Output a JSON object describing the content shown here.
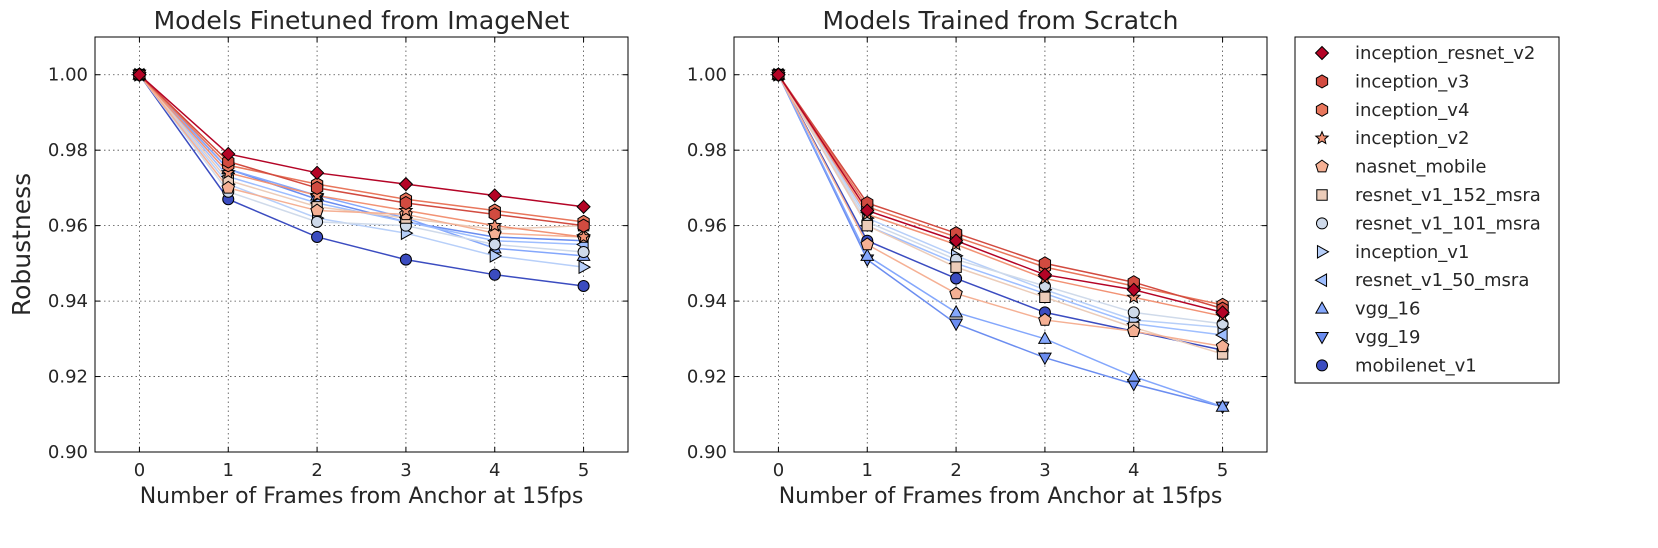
{
  "chart_data": [
    {
      "type": "line",
      "title": "Models Finetuned from ImageNet",
      "xlabel": "Number of Frames from Anchor at 15fps",
      "ylabel": "Robustness",
      "x": [
        0,
        1,
        2,
        3,
        4,
        5
      ],
      "xlim": [
        -0.5,
        5.5
      ],
      "ylim": [
        0.9,
        1.01
      ],
      "xticks": [
        "0",
        "1",
        "2",
        "3",
        "4",
        "5"
      ],
      "yticks": [
        "0.90",
        "0.92",
        "0.94",
        "0.96",
        "0.98",
        "1.00"
      ],
      "grid": true,
      "series": [
        {
          "name": "inception_resnet_v2",
          "values": [
            1.0,
            0.979,
            0.974,
            0.971,
            0.968,
            0.965
          ]
        },
        {
          "name": "inception_v3",
          "values": [
            1.0,
            0.977,
            0.97,
            0.966,
            0.963,
            0.96
          ]
        },
        {
          "name": "inception_v4",
          "values": [
            1.0,
            0.976,
            0.971,
            0.967,
            0.964,
            0.961
          ]
        },
        {
          "name": "inception_v2",
          "values": [
            1.0,
            0.974,
            0.968,
            0.964,
            0.96,
            0.957
          ]
        },
        {
          "name": "nasnet_mobile",
          "values": [
            1.0,
            0.97,
            0.964,
            0.963,
            0.958,
            0.957
          ]
        },
        {
          "name": "resnet_v1_152_msra",
          "values": [
            1.0,
            0.972,
            0.965,
            0.962,
            0.959,
            0.96
          ]
        },
        {
          "name": "resnet_v1_101_msra",
          "values": [
            1.0,
            0.969,
            0.961,
            0.96,
            0.955,
            0.953
          ]
        },
        {
          "name": "inception_v1",
          "values": [
            1.0,
            0.971,
            0.962,
            0.958,
            0.952,
            0.949
          ]
        },
        {
          "name": "resnet_v1_50_msra",
          "values": [
            1.0,
            0.973,
            0.966,
            0.961,
            0.956,
            0.955
          ]
        },
        {
          "name": "vgg_16",
          "values": [
            1.0,
            0.975,
            0.968,
            0.962,
            0.954,
            0.952
          ]
        },
        {
          "name": "vgg_19",
          "values": [
            1.0,
            0.975,
            0.967,
            0.961,
            0.957,
            0.956
          ]
        },
        {
          "name": "mobilenet_v1",
          "values": [
            1.0,
            0.967,
            0.957,
            0.951,
            0.947,
            0.944
          ]
        }
      ]
    },
    {
      "type": "line",
      "title": "Models Trained from Scratch",
      "xlabel": "Number of Frames from Anchor at 15fps",
      "ylabel": "",
      "x": [
        0,
        1,
        2,
        3,
        4,
        5
      ],
      "xlim": [
        -0.5,
        5.5
      ],
      "ylim": [
        0.9,
        1.01
      ],
      "xticks": [
        "0",
        "1",
        "2",
        "3",
        "4",
        "5"
      ],
      "yticks": [
        "0.90",
        "0.92",
        "0.94",
        "0.96",
        "0.98",
        "1.00"
      ],
      "grid": true,
      "series": [
        {
          "name": "inception_resnet_v2",
          "values": [
            1.0,
            0.964,
            0.956,
            0.947,
            0.943,
            0.937
          ]
        },
        {
          "name": "inception_v3",
          "values": [
            1.0,
            0.966,
            0.958,
            0.95,
            0.945,
            0.938
          ]
        },
        {
          "name": "inception_v4",
          "values": [
            1.0,
            0.965,
            0.957,
            0.949,
            0.944,
            0.939
          ]
        },
        {
          "name": "inception_v2",
          "values": [
            1.0,
            0.963,
            0.955,
            0.946,
            0.941,
            0.936
          ]
        },
        {
          "name": "nasnet_mobile",
          "values": [
            1.0,
            0.955,
            0.942,
            0.935,
            0.932,
            0.928
          ]
        },
        {
          "name": "resnet_v1_152_msra",
          "values": [
            1.0,
            0.96,
            0.949,
            0.941,
            0.933,
            0.926
          ]
        },
        {
          "name": "resnet_v1_101_msra",
          "values": [
            1.0,
            0.961,
            0.951,
            0.944,
            0.937,
            0.934
          ]
        },
        {
          "name": "inception_v1",
          "values": [
            1.0,
            0.962,
            0.952,
            0.943,
            0.935,
            0.933
          ]
        },
        {
          "name": "resnet_v1_50_msra",
          "values": [
            1.0,
            0.96,
            0.95,
            0.942,
            0.934,
            0.931
          ]
        },
        {
          "name": "vgg_16",
          "values": [
            1.0,
            0.952,
            0.937,
            0.93,
            0.92,
            0.912
          ]
        },
        {
          "name": "vgg_19",
          "values": [
            1.0,
            0.951,
            0.934,
            0.925,
            0.918,
            0.912
          ]
        },
        {
          "name": "mobilenet_v1",
          "values": [
            1.0,
            0.956,
            0.946,
            0.937,
            0.932,
            0.927
          ]
        }
      ]
    }
  ],
  "legend": {
    "placement": "right, outside",
    "entries": [
      {
        "name": "inception_resnet_v2",
        "marker": "diamond",
        "color": "#b40426"
      },
      {
        "name": "inception_v3",
        "marker": "hexagon",
        "color": "#d24b40"
      },
      {
        "name": "inception_v4",
        "marker": "hexagon",
        "color": "#e8765c"
      },
      {
        "name": "inception_v2",
        "marker": "star",
        "color": "#f29274"
      },
      {
        "name": "nasnet_mobile",
        "marker": "pentagon",
        "color": "#f5b094"
      },
      {
        "name": "resnet_v1_152_msra",
        "marker": "square",
        "color": "#ecccb9"
      },
      {
        "name": "resnet_v1_101_msra",
        "marker": "circle",
        "color": "#cfdaea"
      },
      {
        "name": "inception_v1",
        "marker": "triangle-right",
        "color": "#b7cff9"
      },
      {
        "name": "resnet_v1_50_msra",
        "marker": "triangle-left",
        "color": "#9ebeff"
      },
      {
        "name": "vgg_16",
        "marker": "triangle-up",
        "color": "#84a7fc"
      },
      {
        "name": "vgg_19",
        "marker": "triangle-down",
        "color": "#6b8df0"
      },
      {
        "name": "mobilenet_v1",
        "marker": "circle",
        "color": "#3b4cc0"
      }
    ]
  }
}
